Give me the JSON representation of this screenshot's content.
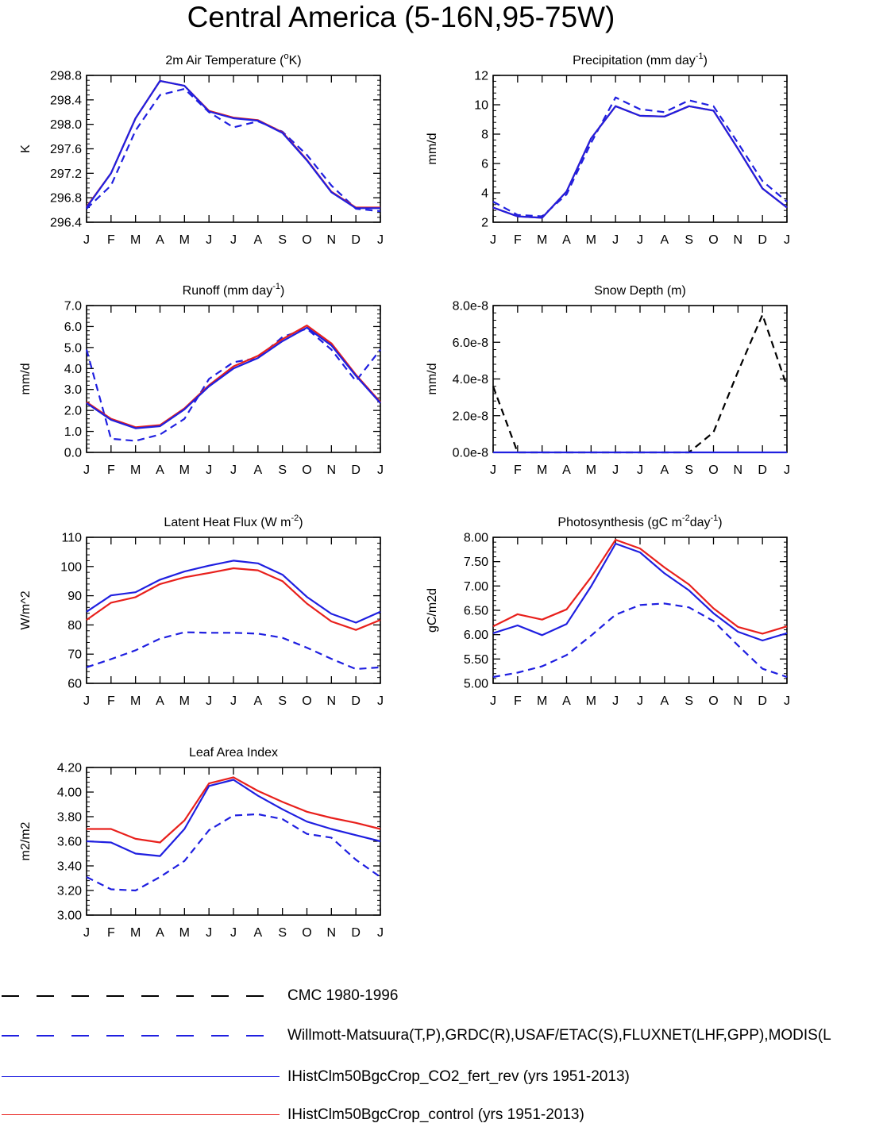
{
  "page": {
    "title": "Central America (5-16N,95-75W)"
  },
  "colors": {
    "obs_cmc": "#000000",
    "obs": "#1f1fe0",
    "co2": "#1f1fe0",
    "control": "#e8201c"
  },
  "legend": [
    {
      "label": "CMC 1980-1996",
      "color": "#000000",
      "dash": true
    },
    {
      "label": "Willmott-Matsuura(T,P),GRDC(R),USAF/ETAC(S),FLUXNET(LHF,GPP),MODIS(L",
      "color": "#1f1fe0",
      "dash": true
    },
    {
      "label": "IHistClm50BgcCrop_CO2_fert_rev (yrs 1951-2013)",
      "color": "#1f1fe0",
      "dash": false
    },
    {
      "label": "IHistClm50BgcCrop_control (yrs 1951-2013)",
      "color": "#e8201c",
      "dash": false
    }
  ],
  "chart_data": [
    {
      "type": "line",
      "title": "2m Air Temperature (°K)",
      "title_parts": {
        "pre": "2m Air Temperature (",
        "sup": "o",
        "post": "K)"
      },
      "ylabel": "K",
      "ylim": [
        296.4,
        298.8
      ],
      "yticks": [
        296.4,
        296.8,
        297.2,
        297.6,
        298.0,
        298.4,
        298.8
      ],
      "ytick_decimals": 1,
      "categories": [
        "J",
        "F",
        "M",
        "A",
        "M",
        "J",
        "J",
        "A",
        "S",
        "O",
        "N",
        "D",
        "J"
      ],
      "series": [
        {
          "values": [
            296.62,
            297.0,
            297.9,
            298.48,
            298.58,
            298.2,
            297.95,
            298.05,
            297.88,
            297.5,
            297.0,
            296.62,
            296.58
          ],
          "color": "#1f1fe0",
          "dash": true
        },
        {
          "values": [
            296.65,
            297.2,
            298.1,
            298.71,
            298.63,
            298.22,
            298.11,
            298.07,
            297.87,
            297.42,
            296.9,
            296.64,
            296.64
          ],
          "color": "#e8201c",
          "dash": false
        },
        {
          "values": [
            296.64,
            297.2,
            298.1,
            298.71,
            298.63,
            298.21,
            298.1,
            298.06,
            297.86,
            297.41,
            296.89,
            296.63,
            296.63
          ],
          "color": "#1f1fe0",
          "dash": false
        }
      ]
    },
    {
      "type": "line",
      "title": "Precipitation (mm day-1)",
      "title_parts": {
        "pre": "Precipitation (mm day",
        "sup": "-1",
        "post": ")"
      },
      "ylabel": "mm/d",
      "ylim": [
        2,
        12
      ],
      "yticks": [
        2,
        4,
        6,
        8,
        10,
        12
      ],
      "ytick_decimals": 0,
      "categories": [
        "J",
        "F",
        "M",
        "A",
        "M",
        "J",
        "J",
        "A",
        "S",
        "O",
        "N",
        "D",
        "J"
      ],
      "series": [
        {
          "values": [
            3.4,
            2.5,
            2.4,
            3.9,
            7.4,
            10.5,
            9.7,
            9.5,
            10.3,
            9.9,
            7.4,
            4.8,
            3.4
          ],
          "color": "#1f1fe0",
          "dash": true
        },
        {
          "values": [
            3.0,
            2.4,
            2.3,
            4.1,
            7.7,
            9.9,
            9.25,
            9.2,
            9.9,
            9.6,
            7.0,
            4.3,
            3.0
          ],
          "color": "#e8201c",
          "dash": false
        },
        {
          "values": [
            3.0,
            2.4,
            2.3,
            4.1,
            7.7,
            9.9,
            9.25,
            9.2,
            9.9,
            9.6,
            7.0,
            4.3,
            3.0
          ],
          "color": "#1f1fe0",
          "dash": false
        }
      ]
    },
    {
      "type": "line",
      "title": "Runoff (mm day-1)",
      "title_parts": {
        "pre": "Runoff (mm day",
        "sup": "-1",
        "post": ")"
      },
      "ylabel": "mm/d",
      "ylim": [
        0.0,
        7.0
      ],
      "yticks": [
        0.0,
        1.0,
        2.0,
        3.0,
        4.0,
        5.0,
        6.0,
        7.0
      ],
      "ytick_decimals": 1,
      "categories": [
        "J",
        "F",
        "M",
        "A",
        "M",
        "J",
        "J",
        "A",
        "S",
        "O",
        "N",
        "D",
        "J"
      ],
      "series": [
        {
          "values": [
            4.9,
            0.65,
            0.55,
            0.85,
            1.6,
            3.5,
            4.3,
            4.5,
            5.5,
            5.9,
            4.9,
            3.4,
            4.9
          ],
          "color": "#1f1fe0",
          "dash": true
        },
        {
          "values": [
            2.4,
            1.6,
            1.2,
            1.3,
            2.1,
            3.2,
            4.1,
            4.6,
            5.4,
            6.05,
            5.2,
            3.7,
            2.4
          ],
          "color": "#e8201c",
          "dash": false
        },
        {
          "values": [
            2.35,
            1.55,
            1.15,
            1.25,
            2.05,
            3.15,
            4.0,
            4.5,
            5.3,
            5.95,
            5.1,
            3.65,
            2.35
          ],
          "color": "#1f1fe0",
          "dash": false
        }
      ]
    },
    {
      "type": "line",
      "title": "Snow Depth (m)",
      "title_parts": {
        "pre": "Snow Depth (m)",
        "sup": "",
        "post": ""
      },
      "ylabel": "mm/d",
      "ylim": [
        0,
        8e-08
      ],
      "yticks": [
        0,
        2e-08,
        4e-08,
        6e-08,
        8e-08
      ],
      "ytick_labels": [
        "0.0e-8",
        "2.0e-8",
        "4.0e-8",
        "6.0e-8",
        "8.0e-8"
      ],
      "categories": [
        "J",
        "F",
        "M",
        "A",
        "M",
        "J",
        "J",
        "A",
        "S",
        "O",
        "N",
        "D",
        "J"
      ],
      "series": [
        {
          "values": [
            3.6e-08,
            0,
            0,
            0,
            0,
            0,
            0,
            0,
            0,
            1.1e-08,
            4.4e-08,
            7.5e-08,
            3.6e-08
          ],
          "color": "#000000",
          "dash": true
        },
        {
          "values": [
            0,
            0,
            0,
            0,
            0,
            0,
            0,
            0,
            0,
            0,
            0,
            0,
            0
          ],
          "color": "#1f1fe0",
          "dash": false
        }
      ]
    },
    {
      "type": "line",
      "title": "Latent Heat Flux (W m-2)",
      "title_parts": {
        "pre": "Latent Heat Flux (W m",
        "sup": "-2",
        "post": ")"
      },
      "ylabel": "W/m^2",
      "ylim": [
        60,
        110
      ],
      "yticks": [
        60,
        70,
        80,
        90,
        100,
        110
      ],
      "ytick_decimals": 0,
      "categories": [
        "J",
        "F",
        "M",
        "A",
        "M",
        "J",
        "J",
        "A",
        "S",
        "O",
        "N",
        "D",
        "J"
      ],
      "series": [
        {
          "values": [
            65.5,
            68.3,
            71.3,
            75.3,
            77.5,
            77.3,
            77.3,
            77.0,
            75.6,
            72.2,
            68.4,
            64.9,
            65.5
          ],
          "color": "#1f1fe0",
          "dash": true
        },
        {
          "values": [
            81.7,
            87.6,
            89.5,
            94.0,
            96.3,
            97.8,
            99.4,
            98.7,
            95.0,
            87.3,
            81.2,
            78.3,
            81.7
          ],
          "color": "#e8201c",
          "dash": false
        },
        {
          "values": [
            84.5,
            90.1,
            91.2,
            95.5,
            98.3,
            100.3,
            102.0,
            101.1,
            97.2,
            89.6,
            83.8,
            80.8,
            84.5
          ],
          "color": "#1f1fe0",
          "dash": false
        }
      ]
    },
    {
      "type": "line",
      "title": "Photosynthesis (gC m-2day-1)",
      "title_parts": {
        "pre": "Photosynthesis (gC m",
        "sup": "-2",
        "post": "day",
        "sup2": "-1",
        "post2": ")"
      },
      "ylabel": "gC/m2d",
      "ylim": [
        5.0,
        8.0
      ],
      "yticks": [
        5.0,
        5.5,
        6.0,
        6.5,
        7.0,
        7.5,
        8.0
      ],
      "ytick_decimals": 2,
      "categories": [
        "J",
        "F",
        "M",
        "A",
        "M",
        "J",
        "J",
        "A",
        "S",
        "O",
        "N",
        "D",
        "J"
      ],
      "series": [
        {
          "values": [
            5.13,
            5.22,
            5.35,
            5.58,
            5.98,
            6.41,
            6.61,
            6.64,
            6.56,
            6.28,
            5.78,
            5.3,
            5.13
          ],
          "color": "#1f1fe0",
          "dash": true
        },
        {
          "values": [
            6.17,
            6.42,
            6.31,
            6.52,
            7.18,
            7.95,
            7.77,
            7.38,
            7.03,
            6.54,
            6.16,
            6.02,
            6.17
          ],
          "color": "#e8201c",
          "dash": false
        },
        {
          "values": [
            6.03,
            6.19,
            5.99,
            6.22,
            6.99,
            7.87,
            7.69,
            7.26,
            6.91,
            6.44,
            6.06,
            5.88,
            6.03
          ],
          "color": "#1f1fe0",
          "dash": false
        }
      ]
    },
    {
      "type": "line",
      "title": "Leaf Area Index",
      "title_parts": {
        "pre": "Leaf Area Index",
        "sup": "",
        "post": ""
      },
      "ylabel": "m2/m2",
      "ylim": [
        3.0,
        4.2
      ],
      "yticks": [
        3.0,
        3.2,
        3.4,
        3.6,
        3.8,
        4.0,
        4.2
      ],
      "ytick_decimals": 2,
      "categories": [
        "J",
        "F",
        "M",
        "A",
        "M",
        "J",
        "J",
        "A",
        "S",
        "O",
        "N",
        "D",
        "J"
      ],
      "series": [
        {
          "values": [
            3.31,
            3.21,
            3.2,
            3.31,
            3.44,
            3.69,
            3.81,
            3.82,
            3.78,
            3.66,
            3.63,
            3.45,
            3.31
          ],
          "color": "#1f1fe0",
          "dash": true
        },
        {
          "values": [
            3.7,
            3.7,
            3.62,
            3.59,
            3.77,
            4.07,
            4.12,
            4.01,
            3.92,
            3.84,
            3.79,
            3.75,
            3.7
          ],
          "color": "#e8201c",
          "dash": false
        },
        {
          "values": [
            3.6,
            3.59,
            3.5,
            3.48,
            3.7,
            4.05,
            4.1,
            3.97,
            3.86,
            3.76,
            3.7,
            3.65,
            3.6
          ],
          "color": "#1f1fe0",
          "dash": false
        }
      ]
    }
  ]
}
